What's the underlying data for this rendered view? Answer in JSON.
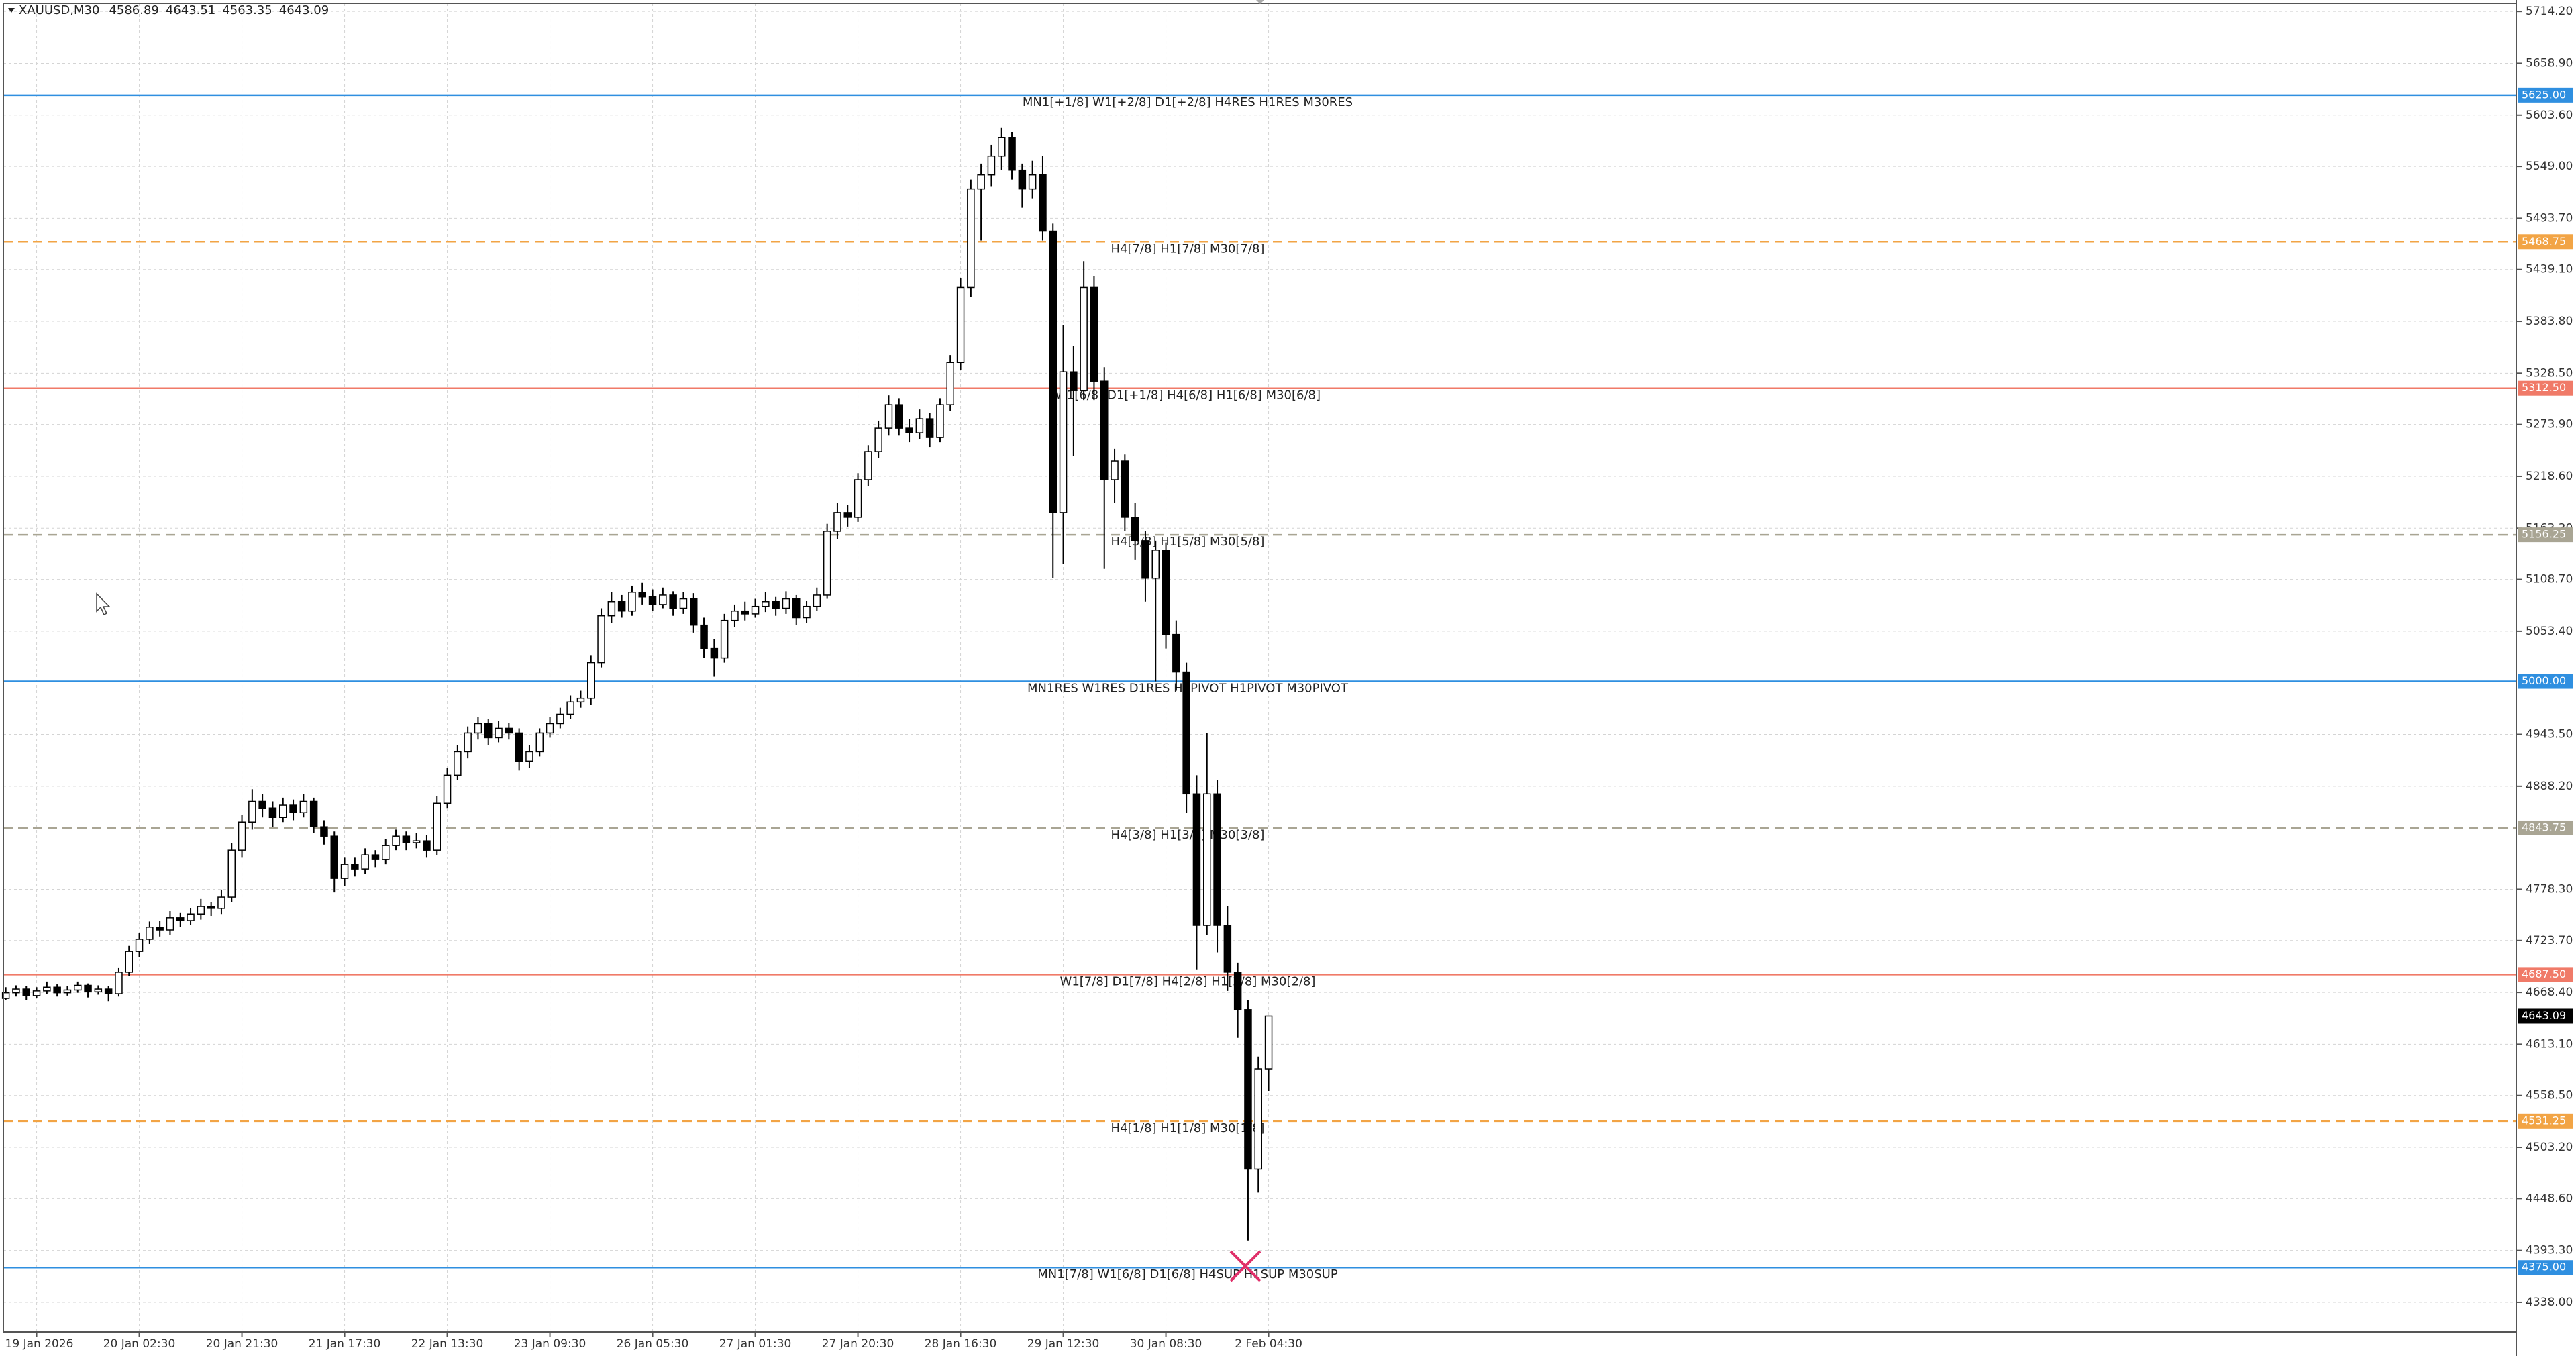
{
  "chart_data": {
    "type": "candlestick",
    "symbol": "XAUUSD,M30",
    "ylim": [
      4306.5,
      5722.9
    ],
    "yticks": [
      {
        "value": 5714.2,
        "label": "5714.20"
      },
      {
        "value": 5658.9,
        "label": "5658.90"
      },
      {
        "value": 5603.6,
        "label": "5603.60"
      },
      {
        "value": 5549.0,
        "label": "5549.00"
      },
      {
        "value": 5493.7,
        "label": "5493.70"
      },
      {
        "value": 5439.1,
        "label": "5439.10"
      },
      {
        "value": 5383.8,
        "label": "5383.80"
      },
      {
        "value": 5328.5,
        "label": "5328.50"
      },
      {
        "value": 5273.9,
        "label": "5273.90"
      },
      {
        "value": 5218.6,
        "label": "5218.60"
      },
      {
        "value": 5163.3,
        "label": "5163.30"
      },
      {
        "value": 5108.7,
        "label": "5108.70"
      },
      {
        "value": 5053.4,
        "label": "5053.40"
      },
      {
        "value": 4943.5,
        "label": "4943.50"
      },
      {
        "value": 4888.2,
        "label": "4888.20"
      },
      {
        "value": 4778.3,
        "label": "4778.30"
      },
      {
        "value": 4723.7,
        "label": "4723.70"
      },
      {
        "value": 4668.4,
        "label": "4668.40"
      },
      {
        "value": 4613.1,
        "label": "4613.10"
      },
      {
        "value": 4558.5,
        "label": "4558.50"
      },
      {
        "value": 4503.2,
        "label": "4503.20"
      },
      {
        "value": 4448.6,
        "label": "4448.60"
      },
      {
        "value": 4393.3,
        "label": "4393.30"
      },
      {
        "value": 4338.0,
        "label": "4338.00"
      }
    ],
    "grid": true,
    "up_color": "#ffffff",
    "down_color": "#000000",
    "categories": [
      null,
      null,
      null,
      "19 Jan 2026",
      null,
      null,
      null,
      null,
      null,
      null,
      null,
      null,
      null,
      "20 Jan 02:30",
      null,
      null,
      null,
      null,
      null,
      null,
      null,
      null,
      null,
      "20 Jan 21:30",
      null,
      null,
      null,
      null,
      null,
      null,
      null,
      null,
      null,
      "21 Jan 17:30",
      null,
      null,
      null,
      null,
      null,
      null,
      null,
      null,
      null,
      "22 Jan 13:30",
      null,
      null,
      null,
      null,
      null,
      null,
      null,
      null,
      null,
      "23 Jan 09:30",
      null,
      null,
      null,
      null,
      null,
      null,
      null,
      null,
      null,
      "26 Jan 05:30",
      null,
      null,
      null,
      null,
      null,
      null,
      null,
      null,
      null,
      "27 Jan 01:30",
      null,
      null,
      null,
      null,
      null,
      null,
      null,
      null,
      null,
      "27 Jan 20:30",
      null,
      null,
      null,
      null,
      null,
      null,
      null,
      null,
      null,
      "28 Jan 16:30",
      null,
      null,
      null,
      null,
      null,
      null,
      null,
      null,
      null,
      "29 Jan 12:30",
      null,
      null,
      null,
      null,
      null,
      null,
      null,
      null,
      null,
      "30 Jan 08:30",
      null,
      null,
      null,
      null,
      null,
      null,
      null,
      null,
      null,
      "2 Feb 04:30"
    ],
    "candles": [
      [
        4662,
        4674,
        4660,
        4668
      ],
      [
        4668,
        4676,
        4664,
        4672
      ],
      [
        4672,
        4675,
        4660,
        4665
      ],
      [
        4665,
        4674,
        4662,
        4670
      ],
      [
        4670,
        4680,
        4667,
        4674
      ],
      [
        4674,
        4677,
        4664,
        4668
      ],
      [
        4668,
        4675,
        4665,
        4671
      ],
      [
        4671,
        4680,
        4668,
        4676
      ],
      [
        4676,
        4678,
        4663,
        4669
      ],
      [
        4669,
        4676,
        4666,
        4672
      ],
      [
        4672,
        4675,
        4659,
        4667
      ],
      [
        4667,
        4695,
        4664,
        4690
      ],
      [
        4690,
        4718,
        4686,
        4712
      ],
      [
        4712,
        4732,
        4706,
        4725
      ],
      [
        4725,
        4744,
        4720,
        4738
      ],
      [
        4738,
        4745,
        4728,
        4735
      ],
      [
        4735,
        4755,
        4730,
        4748
      ],
      [
        4748,
        4753,
        4738,
        4745
      ],
      [
        4745,
        4758,
        4740,
        4752
      ],
      [
        4752,
        4768,
        4746,
        4760
      ],
      [
        4760,
        4765,
        4750,
        4758
      ],
      [
        4758,
        4778,
        4752,
        4770
      ],
      [
        4770,
        4828,
        4765,
        4820
      ],
      [
        4820,
        4858,
        4812,
        4850
      ],
      [
        4850,
        4885,
        4842,
        4872
      ],
      [
        4872,
        4880,
        4855,
        4865
      ],
      [
        4865,
        4872,
        4845,
        4855
      ],
      [
        4855,
        4876,
        4850,
        4868
      ],
      [
        4868,
        4874,
        4852,
        4860
      ],
      [
        4860,
        4880,
        4855,
        4872
      ],
      [
        4872,
        4876,
        4838,
        4845
      ],
      [
        4845,
        4852,
        4826,
        4835
      ],
      [
        4835,
        4840,
        4775,
        4790
      ],
      [
        4790,
        4812,
        4782,
        4805
      ],
      [
        4805,
        4812,
        4792,
        4800
      ],
      [
        4800,
        4822,
        4795,
        4815
      ],
      [
        4815,
        4820,
        4802,
        4810
      ],
      [
        4810,
        4832,
        4805,
        4825
      ],
      [
        4825,
        4842,
        4820,
        4835
      ],
      [
        4835,
        4840,
        4820,
        4828
      ],
      [
        4828,
        4838,
        4822,
        4830
      ],
      [
        4830,
        4836,
        4812,
        4820
      ],
      [
        4820,
        4878,
        4815,
        4870
      ],
      [
        4870,
        4908,
        4865,
        4900
      ],
      [
        4900,
        4932,
        4895,
        4925
      ],
      [
        4925,
        4952,
        4918,
        4945
      ],
      [
        4945,
        4962,
        4938,
        4955
      ],
      [
        4955,
        4960,
        4932,
        4940
      ],
      [
        4940,
        4958,
        4935,
        4950
      ],
      [
        4950,
        4956,
        4938,
        4945
      ],
      [
        4945,
        4950,
        4905,
        4915
      ],
      [
        4915,
        4932,
        4908,
        4925
      ],
      [
        4925,
        4950,
        4920,
        4945
      ],
      [
        4945,
        4962,
        4940,
        4955
      ],
      [
        4955,
        4972,
        4950,
        4965
      ],
      [
        4965,
        4985,
        4960,
        4978
      ],
      [
        4978,
        4990,
        4972,
        4982
      ],
      [
        4982,
        5028,
        4975,
        5020
      ],
      [
        5020,
        5078,
        5015,
        5070
      ],
      [
        5070,
        5095,
        5062,
        5085
      ],
      [
        5085,
        5092,
        5068,
        5075
      ],
      [
        5075,
        5102,
        5070,
        5095
      ],
      [
        5095,
        5105,
        5082,
        5090
      ],
      [
        5090,
        5098,
        5075,
        5082
      ],
      [
        5082,
        5100,
        5078,
        5092
      ],
      [
        5092,
        5096,
        5070,
        5078
      ],
      [
        5078,
        5095,
        5072,
        5088
      ],
      [
        5088,
        5094,
        5052,
        5060
      ],
      [
        5060,
        5068,
        5025,
        5035
      ],
      [
        5035,
        5045,
        5005,
        5025
      ],
      [
        5025,
        5072,
        5020,
        5065
      ],
      [
        5065,
        5082,
        5058,
        5075
      ],
      [
        5075,
        5085,
        5065,
        5072
      ],
      [
        5072,
        5088,
        5068,
        5080
      ],
      [
        5080,
        5095,
        5074,
        5085
      ],
      [
        5085,
        5090,
        5070,
        5078
      ],
      [
        5078,
        5096,
        5072,
        5088
      ],
      [
        5088,
        5092,
        5060,
        5068
      ],
      [
        5068,
        5086,
        5062,
        5080
      ],
      [
        5080,
        5100,
        5075,
        5092
      ],
      [
        5092,
        5168,
        5088,
        5160
      ],
      [
        5160,
        5190,
        5152,
        5180
      ],
      [
        5180,
        5188,
        5165,
        5175
      ],
      [
        5175,
        5222,
        5170,
        5215
      ],
      [
        5215,
        5252,
        5208,
        5245
      ],
      [
        5245,
        5278,
        5238,
        5270
      ],
      [
        5270,
        5305,
        5262,
        5295
      ],
      [
        5295,
        5302,
        5262,
        5270
      ],
      [
        5270,
        5280,
        5255,
        5265
      ],
      [
        5265,
        5290,
        5258,
        5280
      ],
      [
        5280,
        5286,
        5250,
        5260
      ],
      [
        5260,
        5302,
        5255,
        5295
      ],
      [
        5295,
        5348,
        5288,
        5340
      ],
      [
        5340,
        5430,
        5332,
        5420
      ],
      [
        5420,
        5535,
        5410,
        5525
      ],
      [
        5525,
        5552,
        5470,
        5540
      ],
      [
        5540,
        5572,
        5528,
        5560
      ],
      [
        5560,
        5590,
        5545,
        5580
      ],
      [
        5580,
        5586,
        5535,
        5545
      ],
      [
        5545,
        5552,
        5505,
        5525
      ],
      [
        5525,
        5555,
        5515,
        5540
      ],
      [
        5540,
        5560,
        5470,
        5480
      ],
      [
        5480,
        5488,
        5110,
        5180
      ],
      [
        5180,
        5380,
        5125,
        5330
      ],
      [
        5330,
        5358,
        5240,
        5310
      ],
      [
        5310,
        5448,
        5300,
        5420
      ],
      [
        5420,
        5432,
        5300,
        5320
      ],
      [
        5320,
        5335,
        5120,
        5215
      ],
      [
        5215,
        5248,
        5190,
        5235
      ],
      [
        5235,
        5242,
        5160,
        5175
      ],
      [
        5175,
        5190,
        5130,
        5150
      ],
      [
        5150,
        5160,
        5085,
        5110
      ],
      [
        5110,
        5150,
        5000,
        5140
      ],
      [
        5140,
        5148,
        5035,
        5050
      ],
      [
        5050,
        5065,
        4990,
        5010
      ],
      [
        5010,
        5020,
        4860,
        4880
      ],
      [
        4880,
        4900,
        4693,
        4740
      ],
      [
        4740,
        4945,
        4730,
        4880
      ],
      [
        4880,
        4895,
        4711,
        4740
      ],
      [
        4740,
        4760,
        4670,
        4690
      ],
      [
        4690,
        4700,
        4620,
        4650
      ],
      [
        4650,
        4660,
        4404,
        4480
      ],
      [
        4480,
        4600,
        4455,
        4586.89
      ],
      [
        4586.89,
        4643.51,
        4563.35,
        4643.09
      ]
    ],
    "current_price": {
      "value": 4643.09,
      "label": "4643.09"
    },
    "levels": [
      {
        "value": 5625.0,
        "label": "5625.00",
        "color": "#2f8fe0",
        "text_color": "#2f8fe0",
        "style": "solid",
        "text": "MN1[+1/8] W1[+2/8] D1[+2/8] H4RES H1RES M30RES"
      },
      {
        "value": 5468.75,
        "label": "5468.75",
        "color": "#f2a445",
        "text_color": "#e88a1a",
        "style": "dashed",
        "text": "H4[7/8] H1[7/8] M30[7/8]"
      },
      {
        "value": 5312.5,
        "label": "5312.50",
        "color": "#f07a68",
        "text_color": "#d9481f",
        "style": "solid",
        "text": "W1[6/8] D1[+1/8] H4[6/8] H1[6/8] M30[6/8]"
      },
      {
        "value": 5156.25,
        "label": "5156.25",
        "color": "#a9a594",
        "text_color": "#556b2f",
        "style": "dashed",
        "text": "H4[5/8] H1[5/8] M30[5/8]"
      },
      {
        "value": 5000.0,
        "label": "5000.00",
        "color": "#2f8fe0",
        "text_color": "#2f8fe0",
        "style": "solid",
        "text": "MN1RES W1RES D1RES H4PIVOT H1PIVOT M30PIVOT"
      },
      {
        "value": 4843.75,
        "label": "4843.75",
        "color": "#a9a594",
        "text_color": "#556b2f",
        "style": "dashed",
        "text": "H4[3/8] H1[3/8] M30[3/8]"
      },
      {
        "value": 4687.5,
        "label": "4687.50",
        "color": "#f07a68",
        "text_color": "#d9481f",
        "style": "solid",
        "text": "W1[7/8] D1[7/8] H4[2/8] H1[2/8] M30[2/8]"
      },
      {
        "value": 4531.25,
        "label": "4531.25",
        "color": "#f2a445",
        "text_color": "#e88a1a",
        "style": "dashed",
        "text": "H4[1/8] H1[1/8] M30[1/8]"
      },
      {
        "value": 4375.0,
        "label": "4375.00",
        "color": "#2f8fe0",
        "text_color": "#2f8fe0",
        "style": "solid",
        "text": "MN1[7/8] W1[6/8] D1[6/8] H4SUP H1SUP M30SUP"
      }
    ]
  }
}
